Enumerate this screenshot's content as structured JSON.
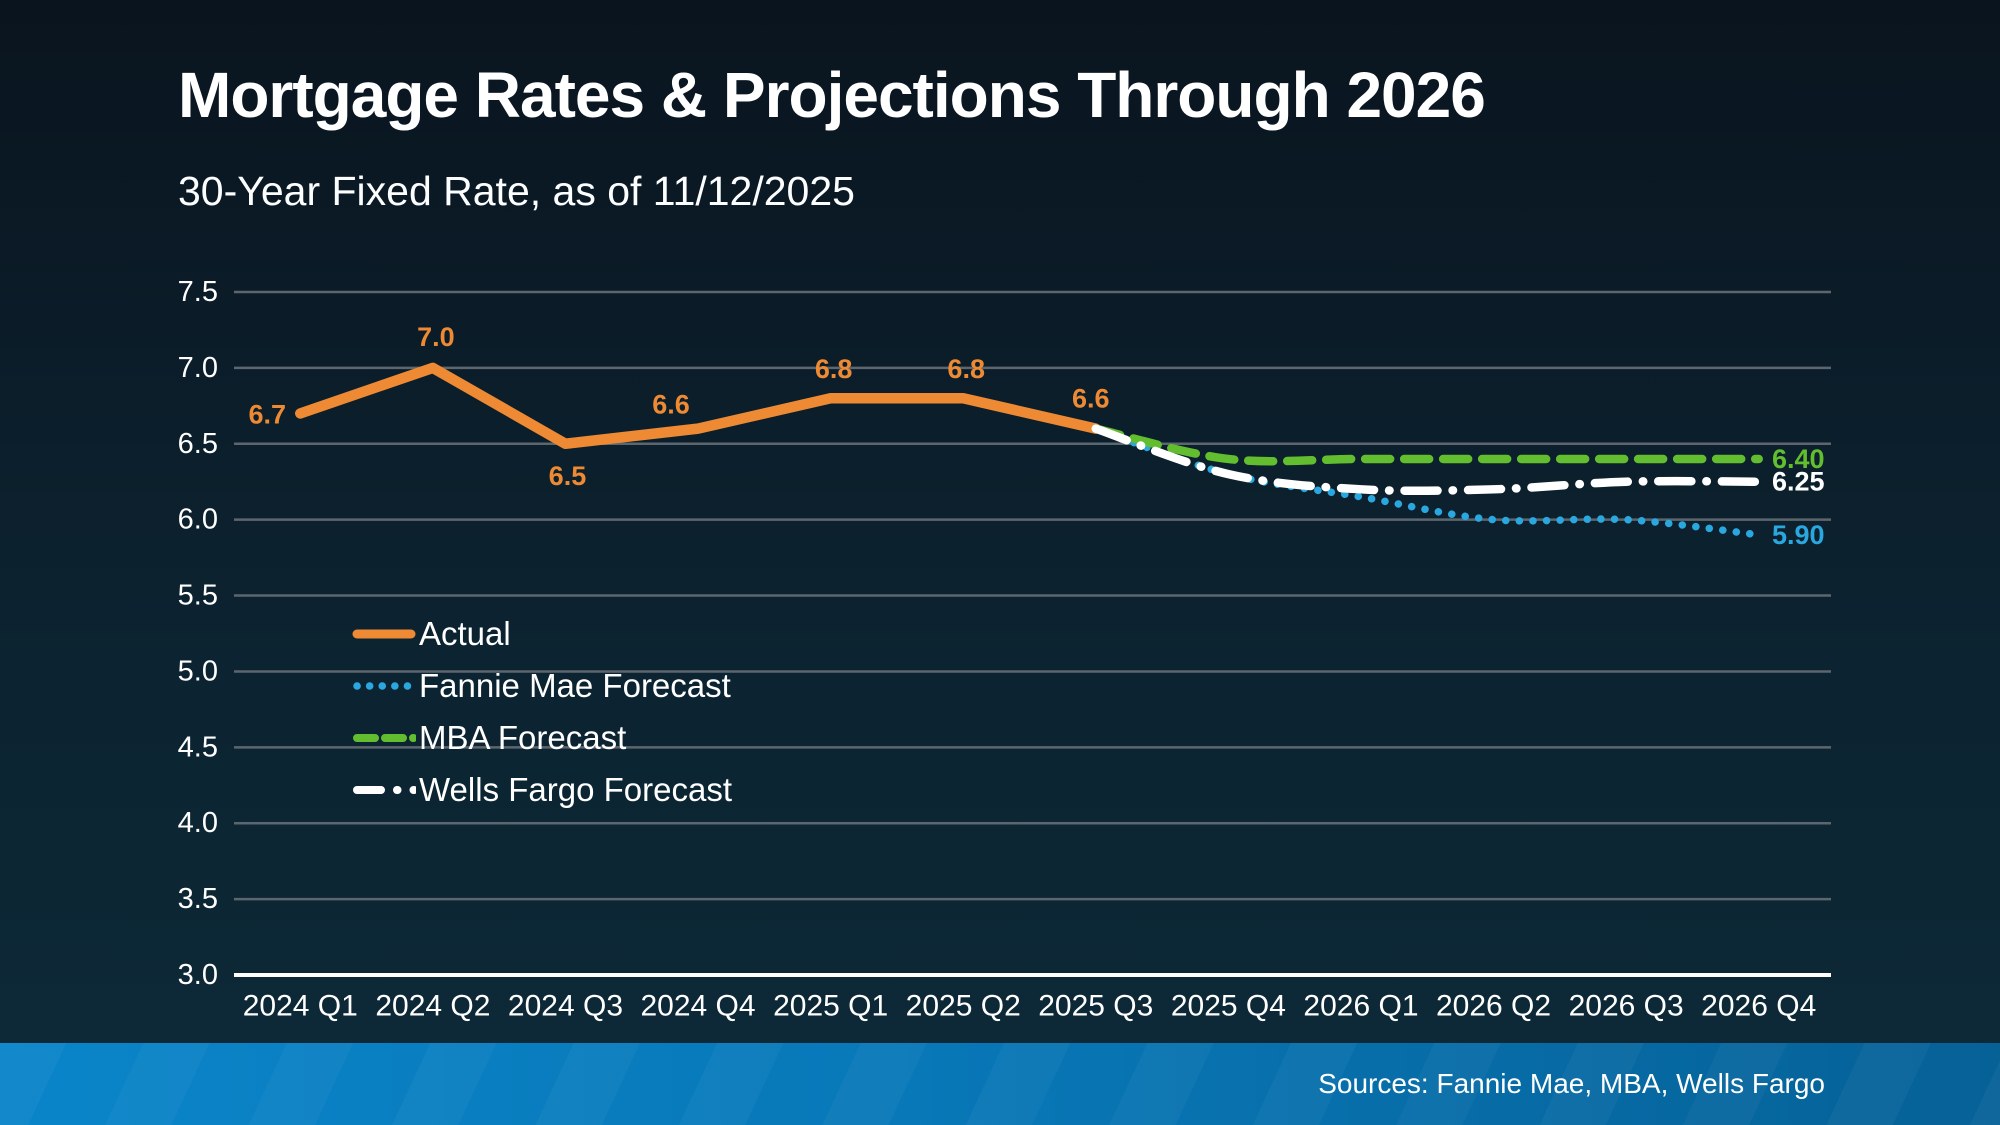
{
  "header": {
    "title": "Mortgage Rates & Projections Through 2026",
    "subtitle": "30-Year Fixed Rate, as of 11/12/2025"
  },
  "footer": {
    "sources": "Sources: Fannie Mae, MBA, Wells Fargo"
  },
  "colors": {
    "background_top": "#0a141e",
    "background_bottom": "#0d2937",
    "grid": "#5d666e",
    "axis_line": "#ffffff",
    "axis_text": "#ffffff",
    "footer_bar_left": "#0a85c9",
    "footer_bar_right": "#066197"
  },
  "chart_data": {
    "type": "line",
    "title": "Mortgage Rates & Projections Through 2026",
    "subtitle": "30-Year Fixed Rate, as of 11/12/2025",
    "categories": [
      "2024 Q1",
      "2024 Q2",
      "2024 Q3",
      "2024 Q4",
      "2025 Q1",
      "2025 Q2",
      "2025 Q3",
      "2025 Q4",
      "2026 Q1",
      "2026 Q2",
      "2026 Q3",
      "2026 Q4"
    ],
    "ylim": [
      3.0,
      7.5
    ],
    "yticks": [
      7.5,
      7.0,
      6.5,
      6.0,
      5.5,
      5.0,
      4.5,
      4.0,
      3.5,
      3.0
    ],
    "grid": true,
    "legend_position": "inside-left",
    "series": [
      {
        "name": "Actual",
        "style": "solid",
        "color": "#ed8a33",
        "start_index": 0,
        "values": [
          6.7,
          7.0,
          6.5,
          6.6,
          6.8,
          6.8,
          6.6
        ],
        "point_labels": [
          "6.7",
          "7.0",
          "6.5",
          "6.6",
          "6.8",
          "6.8",
          "6.6"
        ],
        "point_label_offsets": [
          [
            -33,
            1
          ],
          [
            3,
            -31
          ],
          [
            2,
            32
          ],
          [
            -27,
            -24
          ],
          [
            3,
            -29
          ],
          [
            3,
            -29
          ],
          [
            -5,
            -30
          ]
        ]
      },
      {
        "name": "Fannie Mae Forecast",
        "style": "dotted",
        "color": "#2ba7e0",
        "start_index": 6,
        "values": [
          6.6,
          6.3,
          6.15,
          6.0,
          6.0,
          5.9
        ],
        "end_label": "5.90"
      },
      {
        "name": "MBA Forecast",
        "style": "dashed",
        "color": "#62be2f",
        "start_index": 6,
        "values": [
          6.6,
          6.4,
          6.4,
          6.4,
          6.4,
          6.4
        ],
        "end_label": "6.40"
      },
      {
        "name": "Wells Fargo Forecast",
        "style": "dash-dot",
        "color": "#ffffff",
        "start_index": 6,
        "values": [
          6.6,
          6.3,
          6.2,
          6.2,
          6.25,
          6.25
        ],
        "end_label": "6.25"
      }
    ]
  }
}
